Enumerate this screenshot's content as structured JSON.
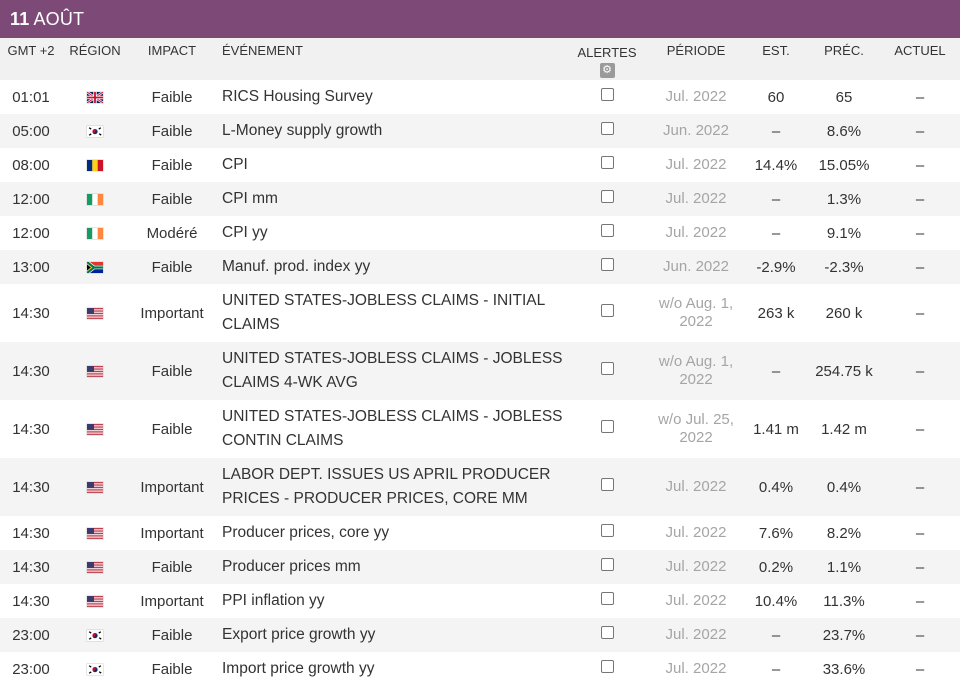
{
  "date": {
    "day": "11",
    "month": "AOÛT"
  },
  "headers": {
    "time": "GMT +2",
    "region": "RÉGION",
    "impact": "IMPACT",
    "event": "ÉVÉNEMENT",
    "alerts": "ALERTES",
    "period": "PÉRIODE",
    "est": "EST.",
    "prec": "PRÉC.",
    "actual": "ACTUEL"
  },
  "icons": {
    "settings": "gear-icon",
    "alert_toggle": "checkbox"
  },
  "colors": {
    "banner": "#7d4a77",
    "header_bg": "#f1f1f1",
    "period_text": "#a5a5a5"
  },
  "rows": [
    {
      "time": "01:01",
      "flag": "gb",
      "impact": "Faible",
      "event": "RICS Housing Survey",
      "period": "Jul. 2022",
      "est": "60",
      "prec": "65",
      "actual": "–"
    },
    {
      "time": "05:00",
      "flag": "kr",
      "impact": "Faible",
      "event": "L-Money supply growth",
      "period": "Jun. 2022",
      "est": "–",
      "prec": "8.6%",
      "actual": "–"
    },
    {
      "time": "08:00",
      "flag": "ro",
      "impact": "Faible",
      "event": "CPI",
      "period": "Jul. 2022",
      "est": "14.4%",
      "prec": "15.05%",
      "actual": "–"
    },
    {
      "time": "12:00",
      "flag": "ie",
      "impact": "Faible",
      "event": "CPI mm",
      "period": "Jul. 2022",
      "est": "–",
      "prec": "1.3%",
      "actual": "–"
    },
    {
      "time": "12:00",
      "flag": "ie",
      "impact": "Modéré",
      "event": "CPI yy",
      "period": "Jul. 2022",
      "est": "–",
      "prec": "9.1%",
      "actual": "–"
    },
    {
      "time": "13:00",
      "flag": "za",
      "impact": "Faible",
      "event": "Manuf. prod. index yy",
      "period": "Jun. 2022",
      "est": "-2.9%",
      "prec": "-2.3%",
      "actual": "–"
    },
    {
      "time": "14:30",
      "flag": "us",
      "impact": "Important",
      "event": "UNITED STATES-JOBLESS CLAIMS - INITIAL CLAIMS",
      "period": "w/o Aug. 1, 2022",
      "est": "263 k",
      "prec": "260 k",
      "actual": "–"
    },
    {
      "time": "14:30",
      "flag": "us",
      "impact": "Faible",
      "event": "UNITED STATES-JOBLESS CLAIMS - JOBLESS CLAIMS 4-WK AVG",
      "period": "w/o Aug. 1, 2022",
      "est": "–",
      "prec": "254.75 k",
      "actual": "–"
    },
    {
      "time": "14:30",
      "flag": "us",
      "impact": "Faible",
      "event": "UNITED STATES-JOBLESS CLAIMS - JOBLESS CONTIN CLAIMS",
      "period": "w/o Jul. 25, 2022",
      "est": "1.41 m",
      "prec": "1.42 m",
      "actual": "–"
    },
    {
      "time": "14:30",
      "flag": "us",
      "impact": "Important",
      "event": "LABOR DEPT. ISSUES US APRIL PRODUCER PRICES - PRODUCER PRICES, CORE MM",
      "period": "Jul. 2022",
      "est": "0.4%",
      "prec": "0.4%",
      "actual": "–"
    },
    {
      "time": "14:30",
      "flag": "us",
      "impact": "Important",
      "event": "Producer prices, core yy",
      "period": "Jul. 2022",
      "est": "7.6%",
      "prec": "8.2%",
      "actual": "–"
    },
    {
      "time": "14:30",
      "flag": "us",
      "impact": "Faible",
      "event": "Producer prices mm",
      "period": "Jul. 2022",
      "est": "0.2%",
      "prec": "1.1%",
      "actual": "–"
    },
    {
      "time": "14:30",
      "flag": "us",
      "impact": "Important",
      "event": "PPI inflation yy",
      "period": "Jul. 2022",
      "est": "10.4%",
      "prec": "11.3%",
      "actual": "–"
    },
    {
      "time": "23:00",
      "flag": "kr",
      "impact": "Faible",
      "event": "Export price growth yy",
      "period": "Jul. 2022",
      "est": "–",
      "prec": "23.7%",
      "actual": "–"
    },
    {
      "time": "23:00",
      "flag": "kr",
      "impact": "Faible",
      "event": "Import price growth yy",
      "period": "Jul. 2022",
      "est": "–",
      "prec": "33.6%",
      "actual": "–"
    }
  ]
}
